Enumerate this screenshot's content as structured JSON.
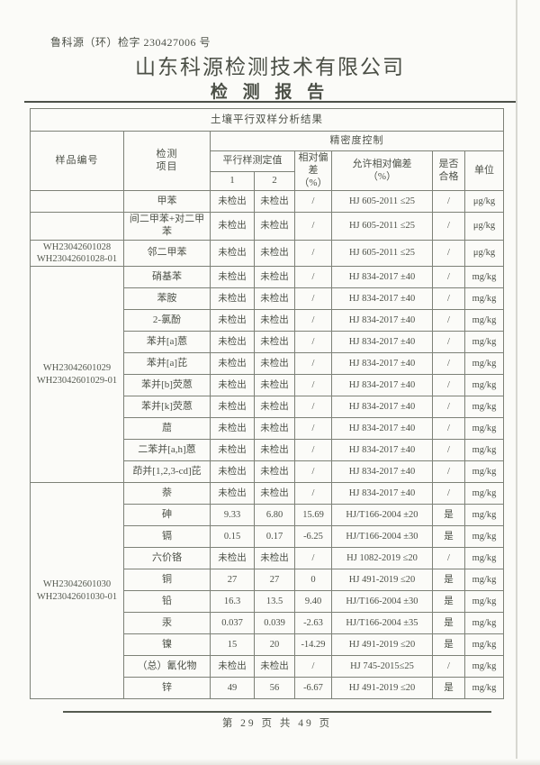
{
  "header": {
    "doc_number": "鲁科源（环）检字 230427006 号",
    "company": "山东科源检测技术有限公司",
    "report_title": "检 测 报 告"
  },
  "table": {
    "title": "土壤平行双样分析结果",
    "headers": {
      "sample_id": "样品编号",
      "item": "检测\n项目",
      "precision": "精密度控制",
      "parallel": "平行样测定值",
      "parallel_1": "1",
      "parallel_2": "2",
      "relative_deviation": "相对偏\n差\n（%）",
      "allowed_deviation": "允许相对偏差\n（%）",
      "qualified": "是否\n合格",
      "unit": "单位"
    },
    "groups": [
      {
        "sample_ids": [
          "WH23042601028",
          "WH23042601028-01"
        ],
        "id_display": "last_row_only",
        "rows": [
          {
            "item": "甲苯",
            "v1": "未检出",
            "v2": "未检出",
            "dev": "/",
            "allowed": "HJ 605-2011 ≤25",
            "pass": "/",
            "unit": "μg/kg"
          },
          {
            "item": "间二甲苯+对二甲苯",
            "v1": "未检出",
            "v2": "未检出",
            "dev": "/",
            "allowed": "HJ 605-2011 ≤25",
            "pass": "/",
            "unit": "μg/kg"
          },
          {
            "item": "邻二甲苯",
            "v1": "未检出",
            "v2": "未检出",
            "dev": "/",
            "allowed": "HJ 605-2011 ≤25",
            "pass": "/",
            "unit": "μg/kg"
          }
        ]
      },
      {
        "sample_ids": [
          "WH23042601029",
          "WH23042601029-01"
        ],
        "id_display": "merged",
        "rows": [
          {
            "item": "硝基苯",
            "v1": "未检出",
            "v2": "未检出",
            "dev": "/",
            "allowed": "HJ 834-2017 ±40",
            "pass": "/",
            "unit": "mg/kg"
          },
          {
            "item": "苯胺",
            "v1": "未检出",
            "v2": "未检出",
            "dev": "/",
            "allowed": "HJ 834-2017 ±40",
            "pass": "/",
            "unit": "mg/kg"
          },
          {
            "item": "2-氯酚",
            "v1": "未检出",
            "v2": "未检出",
            "dev": "/",
            "allowed": "HJ 834-2017 ±40",
            "pass": "/",
            "unit": "mg/kg"
          },
          {
            "item": "苯并[a]蒽",
            "v1": "未检出",
            "v2": "未检出",
            "dev": "/",
            "allowed": "HJ 834-2017 ±40",
            "pass": "/",
            "unit": "mg/kg"
          },
          {
            "item": "苯并[a]芘",
            "v1": "未检出",
            "v2": "未检出",
            "dev": "/",
            "allowed": "HJ 834-2017 ±40",
            "pass": "/",
            "unit": "mg/kg"
          },
          {
            "item": "苯并[b]荧蒽",
            "v1": "未检出",
            "v2": "未检出",
            "dev": "/",
            "allowed": "HJ 834-2017 ±40",
            "pass": "/",
            "unit": "mg/kg"
          },
          {
            "item": "苯并[k]荧蒽",
            "v1": "未检出",
            "v2": "未检出",
            "dev": "/",
            "allowed": "HJ 834-2017 ±40",
            "pass": "/",
            "unit": "mg/kg"
          },
          {
            "item": "䓛",
            "v1": "未检出",
            "v2": "未检出",
            "dev": "/",
            "allowed": "HJ 834-2017 ±40",
            "pass": "/",
            "unit": "mg/kg"
          },
          {
            "item": "二苯并[a,h]蒽",
            "v1": "未检出",
            "v2": "未检出",
            "dev": "/",
            "allowed": "HJ 834-2017 ±40",
            "pass": "/",
            "unit": "mg/kg"
          },
          {
            "item": "茚并[1,2,3-cd]芘",
            "v1": "未检出",
            "v2": "未检出",
            "dev": "/",
            "allowed": "HJ 834-2017 ±40",
            "pass": "/",
            "unit": "mg/kg"
          }
        ]
      },
      {
        "sample_ids": [
          "WH23042601030",
          "WH23042601030-01"
        ],
        "id_display": "merged",
        "rows": [
          {
            "item": "萘",
            "v1": "未检出",
            "v2": "未检出",
            "dev": "/",
            "allowed": "HJ 834-2017 ±40",
            "pass": "/",
            "unit": "mg/kg"
          },
          {
            "item": "砷",
            "v1": "9.33",
            "v2": "6.80",
            "dev": "15.69",
            "allowed": "HJ/T166-2004 ±20",
            "pass": "是",
            "unit": "mg/kg"
          },
          {
            "item": "镉",
            "v1": "0.15",
            "v2": "0.17",
            "dev": "-6.25",
            "allowed": "HJ/T166-2004 ±30",
            "pass": "是",
            "unit": "mg/kg"
          },
          {
            "item": "六价铬",
            "v1": "未检出",
            "v2": "未检出",
            "dev": "/",
            "allowed": "HJ 1082-2019 ≤20",
            "pass": "/",
            "unit": "mg/kg"
          },
          {
            "item": "铜",
            "v1": "27",
            "v2": "27",
            "dev": "0",
            "allowed": "HJ 491-2019 ≤20",
            "pass": "是",
            "unit": "mg/kg"
          },
          {
            "item": "铅",
            "v1": "16.3",
            "v2": "13.5",
            "dev": "9.40",
            "allowed": "HJ/T166-2004 ±30",
            "pass": "是",
            "unit": "mg/kg"
          },
          {
            "item": "汞",
            "v1": "0.037",
            "v2": "0.039",
            "dev": "-2.63",
            "allowed": "HJ/T166-2004 ±35",
            "pass": "是",
            "unit": "mg/kg"
          },
          {
            "item": "镍",
            "v1": "15",
            "v2": "20",
            "dev": "-14.29",
            "allowed": "HJ 491-2019 ≤20",
            "pass": "是",
            "unit": "mg/kg"
          },
          {
            "item": "（总）氰化物",
            "v1": "未检出",
            "v2": "未检出",
            "dev": "/",
            "allowed": "HJ 745-2015≤25",
            "pass": "/",
            "unit": "mg/kg"
          },
          {
            "item": "锌",
            "v1": "49",
            "v2": "56",
            "dev": "-6.67",
            "allowed": "HJ 491-2019 ≤20",
            "pass": "是",
            "unit": "mg/kg"
          }
        ]
      }
    ]
  },
  "footer": {
    "page_info": "第 29 页 共 49 页"
  }
}
